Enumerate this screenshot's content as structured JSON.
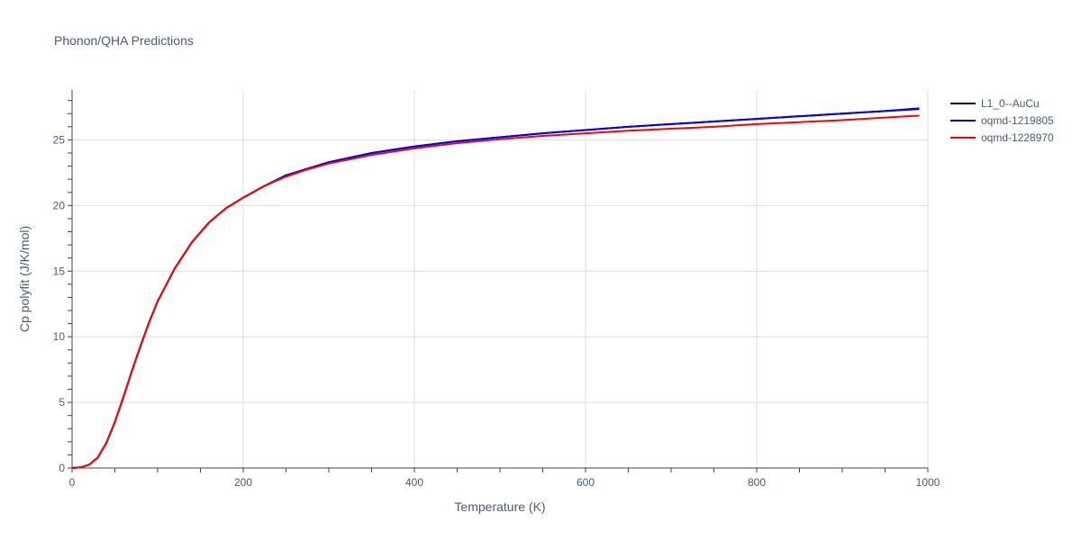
{
  "chart_data": {
    "type": "line",
    "title": "Phonon/QHA Predictions",
    "xlabel": "Temperature (K)",
    "ylabel": "Cp polyfit (J/K/mol)",
    "xlim": [
      0,
      1000
    ],
    "ylim": [
      0,
      28.8
    ],
    "xticks": [
      0,
      200,
      400,
      600,
      800,
      1000
    ],
    "yticks": [
      0,
      5,
      10,
      15,
      20,
      25
    ],
    "grid": true,
    "legend_position": "top-right",
    "series": [
      {
        "name": "L1_0--AuCu",
        "color": "#000000",
        "x": [
          0,
          10,
          20,
          30,
          40,
          50,
          60,
          70,
          80,
          90,
          100,
          120,
          140,
          160,
          180,
          200,
          225,
          250,
          275,
          300,
          350,
          400,
          450,
          500,
          550,
          600,
          650,
          700,
          750,
          800,
          850,
          900,
          950,
          990
        ],
        "y": [
          0,
          0.05,
          0.25,
          0.8,
          1.9,
          3.5,
          5.4,
          7.4,
          9.3,
          11.1,
          12.7,
          15.2,
          17.2,
          18.7,
          19.8,
          20.6,
          21.5,
          22.3,
          22.8,
          23.3,
          24.0,
          24.5,
          24.9,
          25.2,
          25.5,
          25.75,
          26.0,
          26.2,
          26.4,
          26.6,
          26.8,
          27.0,
          27.2,
          27.35
        ]
      },
      {
        "name": "oqmd-1219805",
        "color": "#0000ff",
        "x": [
          0,
          10,
          20,
          30,
          40,
          50,
          60,
          70,
          80,
          90,
          100,
          120,
          140,
          160,
          180,
          200,
          225,
          250,
          275,
          300,
          350,
          400,
          450,
          500,
          550,
          600,
          650,
          700,
          750,
          800,
          850,
          900,
          950,
          990
        ],
        "y": [
          0,
          0.05,
          0.25,
          0.8,
          1.9,
          3.5,
          5.4,
          7.4,
          9.3,
          11.1,
          12.7,
          15.2,
          17.2,
          18.7,
          19.8,
          20.6,
          21.5,
          22.3,
          22.8,
          23.3,
          24.0,
          24.5,
          24.9,
          25.2,
          25.5,
          25.75,
          26.0,
          26.2,
          26.4,
          26.6,
          26.8,
          27.0,
          27.2,
          27.4
        ]
      },
      {
        "name": "oqmd-1228970",
        "color": "#ff0000",
        "x": [
          0,
          10,
          20,
          30,
          40,
          50,
          60,
          70,
          80,
          90,
          100,
          120,
          140,
          160,
          180,
          200,
          225,
          250,
          275,
          300,
          350,
          400,
          450,
          500,
          550,
          600,
          650,
          700,
          750,
          800,
          850,
          900,
          950,
          990
        ],
        "y": [
          0,
          0.05,
          0.25,
          0.8,
          1.9,
          3.5,
          5.4,
          7.4,
          9.3,
          11.1,
          12.7,
          15.2,
          17.2,
          18.7,
          19.8,
          20.6,
          21.5,
          22.2,
          22.75,
          23.2,
          23.85,
          24.35,
          24.75,
          25.05,
          25.3,
          25.5,
          25.7,
          25.85,
          26.0,
          26.2,
          26.35,
          26.5,
          26.7,
          26.85
        ]
      }
    ]
  }
}
